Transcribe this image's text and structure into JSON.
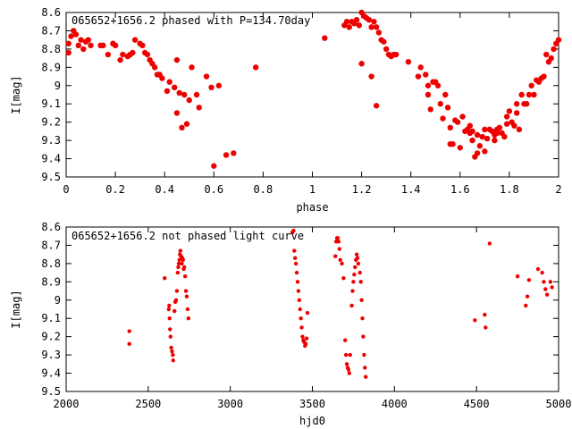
{
  "chart_data": [
    {
      "type": "scatter",
      "title": "065652+1656.2 phased with P=134.70day",
      "xlabel": "phase",
      "ylabel": "I[mag]",
      "xlim": [
        0,
        2
      ],
      "ylim": [
        8.6,
        9.5
      ],
      "y_inverted": true,
      "xticks": [
        "0",
        "0.2",
        "0.4",
        "0.6",
        "0.8",
        "1",
        "1.2",
        "1.4",
        "1.6",
        "1.8",
        "2"
      ],
      "yticks": [
        "8.6",
        "8.7",
        "8.8",
        "8.9",
        "9",
        "9.1",
        "9.2",
        "9.3",
        "9.4",
        "9.5"
      ],
      "color": "#ee0000",
      "points": [
        [
          0.01,
          8.82
        ],
        [
          0.01,
          8.77
        ],
        [
          0.02,
          8.73
        ],
        [
          0.03,
          8.7
        ],
        [
          0.04,
          8.72
        ],
        [
          0.05,
          8.78
        ],
        [
          0.06,
          8.75
        ],
        [
          0.07,
          8.8
        ],
        [
          0.08,
          8.76
        ],
        [
          0.09,
          8.75
        ],
        [
          0.1,
          8.78
        ],
        [
          0.14,
          8.78
        ],
        [
          0.15,
          8.78
        ],
        [
          0.17,
          8.83
        ],
        [
          0.19,
          8.77
        ],
        [
          0.2,
          8.78
        ],
        [
          0.22,
          8.86
        ],
        [
          0.23,
          8.83
        ],
        [
          0.25,
          8.84
        ],
        [
          0.26,
          8.83
        ],
        [
          0.27,
          8.82
        ],
        [
          0.28,
          8.75
        ],
        [
          0.3,
          8.77
        ],
        [
          0.31,
          8.78
        ],
        [
          0.32,
          8.82
        ],
        [
          0.33,
          8.83
        ],
        [
          0.34,
          8.86
        ],
        [
          0.35,
          8.88
        ],
        [
          0.36,
          8.9
        ],
        [
          0.37,
          8.94
        ],
        [
          0.38,
          8.94
        ],
        [
          0.39,
          8.96
        ],
        [
          0.41,
          9.03
        ],
        [
          0.42,
          8.98
        ],
        [
          0.44,
          9.01
        ],
        [
          0.45,
          9.15
        ],
        [
          0.45,
          8.86
        ],
        [
          0.46,
          9.04
        ],
        [
          0.47,
          9.23
        ],
        [
          0.48,
          9.05
        ],
        [
          0.49,
          9.21
        ],
        [
          0.5,
          9.08
        ],
        [
          0.51,
          8.9
        ],
        [
          0.53,
          9.05
        ],
        [
          0.54,
          9.12
        ],
        [
          0.57,
          8.95
        ],
        [
          0.59,
          9.01
        ],
        [
          0.6,
          9.44
        ],
        [
          0.62,
          9.0
        ],
        [
          0.65,
          9.38
        ],
        [
          0.68,
          9.37
        ],
        [
          0.77,
          8.9
        ],
        [
          1.05,
          8.74
        ],
        [
          1.13,
          8.67
        ],
        [
          1.14,
          8.65
        ],
        [
          1.15,
          8.68
        ],
        [
          1.16,
          8.65
        ],
        [
          1.17,
          8.66
        ],
        [
          1.18,
          8.64
        ],
        [
          1.19,
          8.67
        ],
        [
          1.2,
          8.6
        ],
        [
          1.2,
          8.88
        ],
        [
          1.21,
          8.62
        ],
        [
          1.22,
          8.63
        ],
        [
          1.23,
          8.64
        ],
        [
          1.24,
          8.68
        ],
        [
          1.24,
          8.95
        ],
        [
          1.25,
          8.65
        ],
        [
          1.26,
          9.11
        ],
        [
          1.26,
          8.68
        ],
        [
          1.27,
          8.71
        ],
        [
          1.28,
          8.75
        ],
        [
          1.29,
          8.76
        ],
        [
          1.3,
          8.8
        ],
        [
          1.31,
          8.83
        ],
        [
          1.32,
          8.84
        ],
        [
          1.33,
          8.83
        ],
        [
          1.34,
          8.83
        ],
        [
          1.39,
          8.87
        ],
        [
          1.43,
          8.95
        ],
        [
          1.44,
          8.9
        ],
        [
          1.46,
          8.94
        ],
        [
          1.47,
          9.05
        ],
        [
          1.47,
          9.0
        ],
        [
          1.48,
          9.13
        ],
        [
          1.49,
          8.98
        ],
        [
          1.5,
          8.98
        ],
        [
          1.51,
          9.0
        ],
        [
          1.52,
          9.1
        ],
        [
          1.53,
          9.18
        ],
        [
          1.54,
          9.05
        ],
        [
          1.55,
          9.12
        ],
        [
          1.56,
          9.23
        ],
        [
          1.56,
          9.32
        ],
        [
          1.57,
          9.32
        ],
        [
          1.58,
          9.19
        ],
        [
          1.59,
          9.2
        ],
        [
          1.6,
          9.34
        ],
        [
          1.61,
          9.17
        ],
        [
          1.62,
          9.25
        ],
        [
          1.63,
          9.24
        ],
        [
          1.64,
          9.26
        ],
        [
          1.64,
          9.22
        ],
        [
          1.65,
          9.25
        ],
        [
          1.65,
          9.3
        ],
        [
          1.66,
          9.39
        ],
        [
          1.67,
          9.27
        ],
        [
          1.67,
          9.37
        ],
        [
          1.68,
          9.33
        ],
        [
          1.69,
          9.28
        ],
        [
          1.7,
          9.36
        ],
        [
          1.7,
          9.24
        ],
        [
          1.71,
          9.29
        ],
        [
          1.72,
          9.24
        ],
        [
          1.73,
          9.25
        ],
        [
          1.74,
          9.27
        ],
        [
          1.74,
          9.3
        ],
        [
          1.75,
          9.24
        ],
        [
          1.75,
          9.26
        ],
        [
          1.76,
          9.23
        ],
        [
          1.77,
          9.26
        ],
        [
          1.78,
          9.28
        ],
        [
          1.79,
          9.17
        ],
        [
          1.79,
          9.21
        ],
        [
          1.8,
          9.14
        ],
        [
          1.81,
          9.2
        ],
        [
          1.82,
          9.22
        ],
        [
          1.83,
          9.1
        ],
        [
          1.83,
          9.15
        ],
        [
          1.84,
          9.24
        ],
        [
          1.85,
          9.05
        ],
        [
          1.86,
          9.1
        ],
        [
          1.87,
          9.1
        ],
        [
          1.88,
          9.05
        ],
        [
          1.89,
          9.0
        ],
        [
          1.9,
          9.05
        ],
        [
          1.91,
          8.97
        ],
        [
          1.92,
          8.98
        ],
        [
          1.93,
          8.96
        ],
        [
          1.94,
          8.95
        ],
        [
          1.95,
          8.83
        ],
        [
          1.96,
          8.87
        ],
        [
          1.97,
          8.85
        ],
        [
          1.98,
          8.8
        ],
        [
          1.99,
          8.77
        ],
        [
          2.0,
          8.75
        ]
      ]
    },
    {
      "type": "scatter",
      "title": "065652+1656.2 not phased light curve",
      "xlabel": "hjd0",
      "ylabel": "I[mag]",
      "xlim": [
        2000,
        5000
      ],
      "ylim": [
        8.6,
        9.5
      ],
      "y_inverted": true,
      "xticks": [
        "2000",
        "2500",
        "3000",
        "3500",
        "4000",
        "4500",
        "5000"
      ],
      "yticks": [
        "8.6",
        "8.7",
        "8.8",
        "8.9",
        "9",
        "9.1",
        "9.2",
        "9.3",
        "9.4",
        "9.5"
      ],
      "color": "#ee0000",
      "points": [
        [
          2385,
          9.17
        ],
        [
          2385,
          9.24
        ],
        [
          2600,
          8.88
        ],
        [
          2625,
          9.05
        ],
        [
          2628,
          9.03
        ],
        [
          2630,
          9.1
        ],
        [
          2633,
          9.16
        ],
        [
          2636,
          9.2
        ],
        [
          2640,
          9.26
        ],
        [
          2645,
          9.28
        ],
        [
          2650,
          9.3
        ],
        [
          2652,
          9.33
        ],
        [
          2660,
          9.06
        ],
        [
          2665,
          9.01
        ],
        [
          2670,
          9.0
        ],
        [
          2675,
          8.95
        ],
        [
          2680,
          8.85
        ],
        [
          2683,
          8.82
        ],
        [
          2686,
          8.8
        ],
        [
          2690,
          8.78
        ],
        [
          2693,
          8.75
        ],
        [
          2696,
          8.73
        ],
        [
          2700,
          8.76
        ],
        [
          2705,
          8.8
        ],
        [
          2708,
          8.77
        ],
        [
          2712,
          8.78
        ],
        [
          2716,
          8.83
        ],
        [
          2720,
          8.82
        ],
        [
          2725,
          8.87
        ],
        [
          2730,
          8.95
        ],
        [
          2735,
          8.98
        ],
        [
          2740,
          9.05
        ],
        [
          2745,
          9.1
        ],
        [
          3378,
          8.63
        ],
        [
          3385,
          8.62
        ],
        [
          3390,
          8.73
        ],
        [
          3395,
          8.77
        ],
        [
          3400,
          8.8
        ],
        [
          3405,
          8.85
        ],
        [
          3410,
          8.9
        ],
        [
          3415,
          8.95
        ],
        [
          3420,
          9.0
        ],
        [
          3425,
          9.05
        ],
        [
          3430,
          9.1
        ],
        [
          3435,
          9.15
        ],
        [
          3440,
          9.2
        ],
        [
          3445,
          9.22
        ],
        [
          3450,
          9.23
        ],
        [
          3455,
          9.25
        ],
        [
          3460,
          9.24
        ],
        [
          3465,
          9.21
        ],
        [
          3470,
          9.07
        ],
        [
          3640,
          8.76
        ],
        [
          3645,
          8.68
        ],
        [
          3650,
          8.66
        ],
        [
          3655,
          8.66
        ],
        [
          3660,
          8.68
        ],
        [
          3665,
          8.72
        ],
        [
          3670,
          8.78
        ],
        [
          3680,
          8.8
        ],
        [
          3690,
          8.88
        ],
        [
          3700,
          9.22
        ],
        [
          3705,
          9.3
        ],
        [
          3710,
          9.35
        ],
        [
          3715,
          9.37
        ],
        [
          3720,
          9.38
        ],
        [
          3725,
          9.4
        ],
        [
          3730,
          9.3
        ],
        [
          3740,
          9.03
        ],
        [
          3745,
          8.95
        ],
        [
          3750,
          8.9
        ],
        [
          3755,
          8.86
        ],
        [
          3760,
          8.82
        ],
        [
          3765,
          8.78
        ],
        [
          3770,
          8.75
        ],
        [
          3775,
          8.77
        ],
        [
          3780,
          8.8
        ],
        [
          3790,
          8.85
        ],
        [
          3795,
          8.9
        ],
        [
          3800,
          9.0
        ],
        [
          3805,
          9.1
        ],
        [
          3810,
          9.2
        ],
        [
          3815,
          9.3
        ],
        [
          3820,
          9.37
        ],
        [
          3825,
          9.42
        ],
        [
          4490,
          9.11
        ],
        [
          4550,
          9.08
        ],
        [
          4555,
          9.15
        ],
        [
          4580,
          8.69
        ],
        [
          4750,
          8.87
        ],
        [
          4800,
          9.03
        ],
        [
          4810,
          8.98
        ],
        [
          4820,
          8.89
        ],
        [
          4875,
          8.83
        ],
        [
          4900,
          8.85
        ],
        [
          4910,
          8.9
        ],
        [
          4920,
          8.94
        ],
        [
          4930,
          8.97
        ],
        [
          4950,
          8.9
        ],
        [
          4960,
          8.93
        ]
      ]
    }
  ]
}
